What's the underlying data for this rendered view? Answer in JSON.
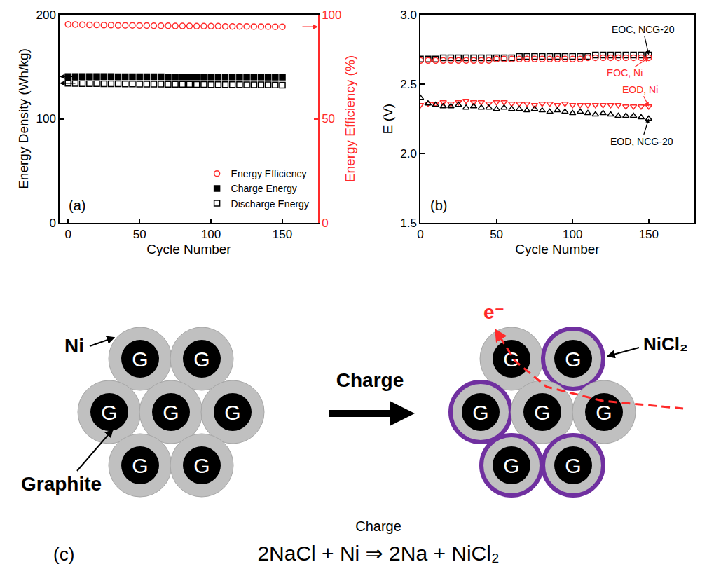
{
  "chart_data": [
    {
      "type": "scatter",
      "panel_label": "(a)",
      "x_label": "Cycle Number",
      "y_label": "Energy Density (Wh/kg)",
      "y2_label": "Energy Efficiency (%)",
      "x": [
        0,
        5,
        10,
        15,
        20,
        25,
        30,
        35,
        40,
        45,
        50,
        55,
        60,
        65,
        70,
        75,
        80,
        85,
        90,
        95,
        100,
        105,
        110,
        115,
        120,
        125,
        130,
        135,
        140,
        145,
        150
      ],
      "xlim": [
        -6,
        175
      ],
      "xticks": [
        0,
        50,
        100,
        150
      ],
      "ylim": [
        0,
        200
      ],
      "yticks": [
        0,
        100,
        200
      ],
      "y2lim": [
        0,
        100
      ],
      "y2ticks": [
        0,
        50,
        100
      ],
      "legend": "lower right",
      "series": [
        {
          "name": "Energy Efficiency",
          "color": "#ff2a2a",
          "marker": "circle-open",
          "axis": "y2",
          "values": [
            95.4,
            95.3,
            95.2,
            95.1,
            95.1,
            95.0,
            95.0,
            94.9,
            94.9,
            94.9,
            94.8,
            94.8,
            94.7,
            94.7,
            94.7,
            94.6,
            94.6,
            94.6,
            94.5,
            94.5,
            94.5,
            94.5,
            94.4,
            94.4,
            94.4,
            94.4,
            94.3,
            94.3,
            94.3,
            94.2,
            94.2
          ]
        },
        {
          "name": "Charge Energy",
          "color": "#000000",
          "marker": "square",
          "values": [
            140.6,
            140.6,
            140.5,
            140.5,
            140.5,
            140.5,
            140.5,
            140.4,
            140.4,
            140.4,
            140.4,
            140.4,
            140.4,
            140.4,
            140.3,
            140.3,
            140.3,
            140.3,
            140.3,
            140.3,
            140.3,
            140.2,
            140.2,
            140.2,
            140.2,
            140.2,
            140.2,
            140.2,
            140.1,
            140.1,
            140.1
          ]
        },
        {
          "name": "Discharge Energy",
          "color": "#000000",
          "marker": "square-open",
          "values": [
            134.1,
            134.0,
            133.9,
            133.8,
            133.8,
            133.7,
            133.6,
            133.6,
            133.5,
            133.5,
            133.4,
            133.4,
            133.3,
            133.3,
            133.2,
            133.2,
            133.1,
            133.1,
            133.0,
            133.0,
            132.9,
            132.9,
            132.9,
            132.8,
            132.8,
            132.7,
            132.7,
            132.6,
            132.6,
            132.5,
            132.4
          ]
        }
      ]
    },
    {
      "type": "scatter",
      "panel_label": "(b)",
      "x_label": "Cycle Number",
      "y_label": "E (V)",
      "x": [
        0,
        5,
        10,
        15,
        20,
        25,
        30,
        35,
        40,
        45,
        50,
        55,
        60,
        65,
        70,
        75,
        80,
        85,
        90,
        95,
        100,
        105,
        110,
        115,
        120,
        125,
        130,
        135,
        140,
        145,
        150
      ],
      "xlim": [
        0,
        180
      ],
      "xticks": [
        0,
        50,
        100,
        150
      ],
      "ylim": [
        1.5,
        3.0
      ],
      "yticks": [
        1.5,
        {
          "value": 2,
          "label": "2.0"
        },
        2.5,
        {
          "value": 3,
          "label": "3.0"
        }
      ],
      "series": [
        {
          "name": "EOC, NCG-20",
          "color": "#000000",
          "marker": "square-open",
          "values": [
            2.68,
            2.68,
            2.68,
            2.69,
            2.69,
            2.69,
            2.69,
            2.69,
            2.69,
            2.69,
            2.69,
            2.69,
            2.69,
            2.7,
            2.7,
            2.7,
            2.7,
            2.7,
            2.7,
            2.7,
            2.7,
            2.7,
            2.7,
            2.71,
            2.71,
            2.71,
            2.71,
            2.71,
            2.71,
            2.71,
            2.71
          ]
        },
        {
          "name": "EOC, Ni",
          "color": "#ff2a2a",
          "marker": "circle-open",
          "values": [
            2.67,
            2.67,
            2.67,
            2.67,
            2.67,
            2.67,
            2.67,
            2.67,
            2.67,
            2.67,
            2.68,
            2.68,
            2.68,
            2.68,
            2.68,
            2.68,
            2.68,
            2.68,
            2.68,
            2.68,
            2.68,
            2.68,
            2.69,
            2.69,
            2.69,
            2.69,
            2.69,
            2.69,
            2.69,
            2.69,
            2.69
          ]
        },
        {
          "name": "EOD, Ni",
          "color": "#ff2a2a",
          "marker": "triangle-down-open",
          "values": [
            2.35,
            2.36,
            2.36,
            2.37,
            2.36,
            2.37,
            2.38,
            2.37,
            2.37,
            2.36,
            2.37,
            2.37,
            2.36,
            2.36,
            2.36,
            2.35,
            2.36,
            2.36,
            2.35,
            2.36,
            2.35,
            2.35,
            2.35,
            2.35,
            2.35,
            2.35,
            2.35,
            2.34,
            2.34,
            2.34,
            2.34
          ]
        },
        {
          "name": "EOD, NCG-20",
          "color": "#000000",
          "marker": "triangle-up-open",
          "values": [
            2.4,
            2.36,
            2.35,
            2.34,
            2.34,
            2.35,
            2.33,
            2.34,
            2.33,
            2.33,
            2.32,
            2.33,
            2.32,
            2.32,
            2.31,
            2.32,
            2.31,
            2.3,
            2.31,
            2.3,
            2.29,
            2.3,
            2.29,
            2.28,
            2.29,
            2.28,
            2.27,
            2.27,
            2.27,
            2.26,
            2.25
          ]
        }
      ]
    }
  ],
  "diagram": {
    "panel_label": "(c)",
    "core_label": "G",
    "shell_label": "Ni",
    "core_name": "Graphite",
    "process_label": "Charge",
    "electron_label": "e⁻",
    "product_label": "NiCl₂",
    "equation": {
      "condition": "Charge",
      "text": "2NaCl + Ni ⇒ 2Na + NiCl₂"
    }
  }
}
